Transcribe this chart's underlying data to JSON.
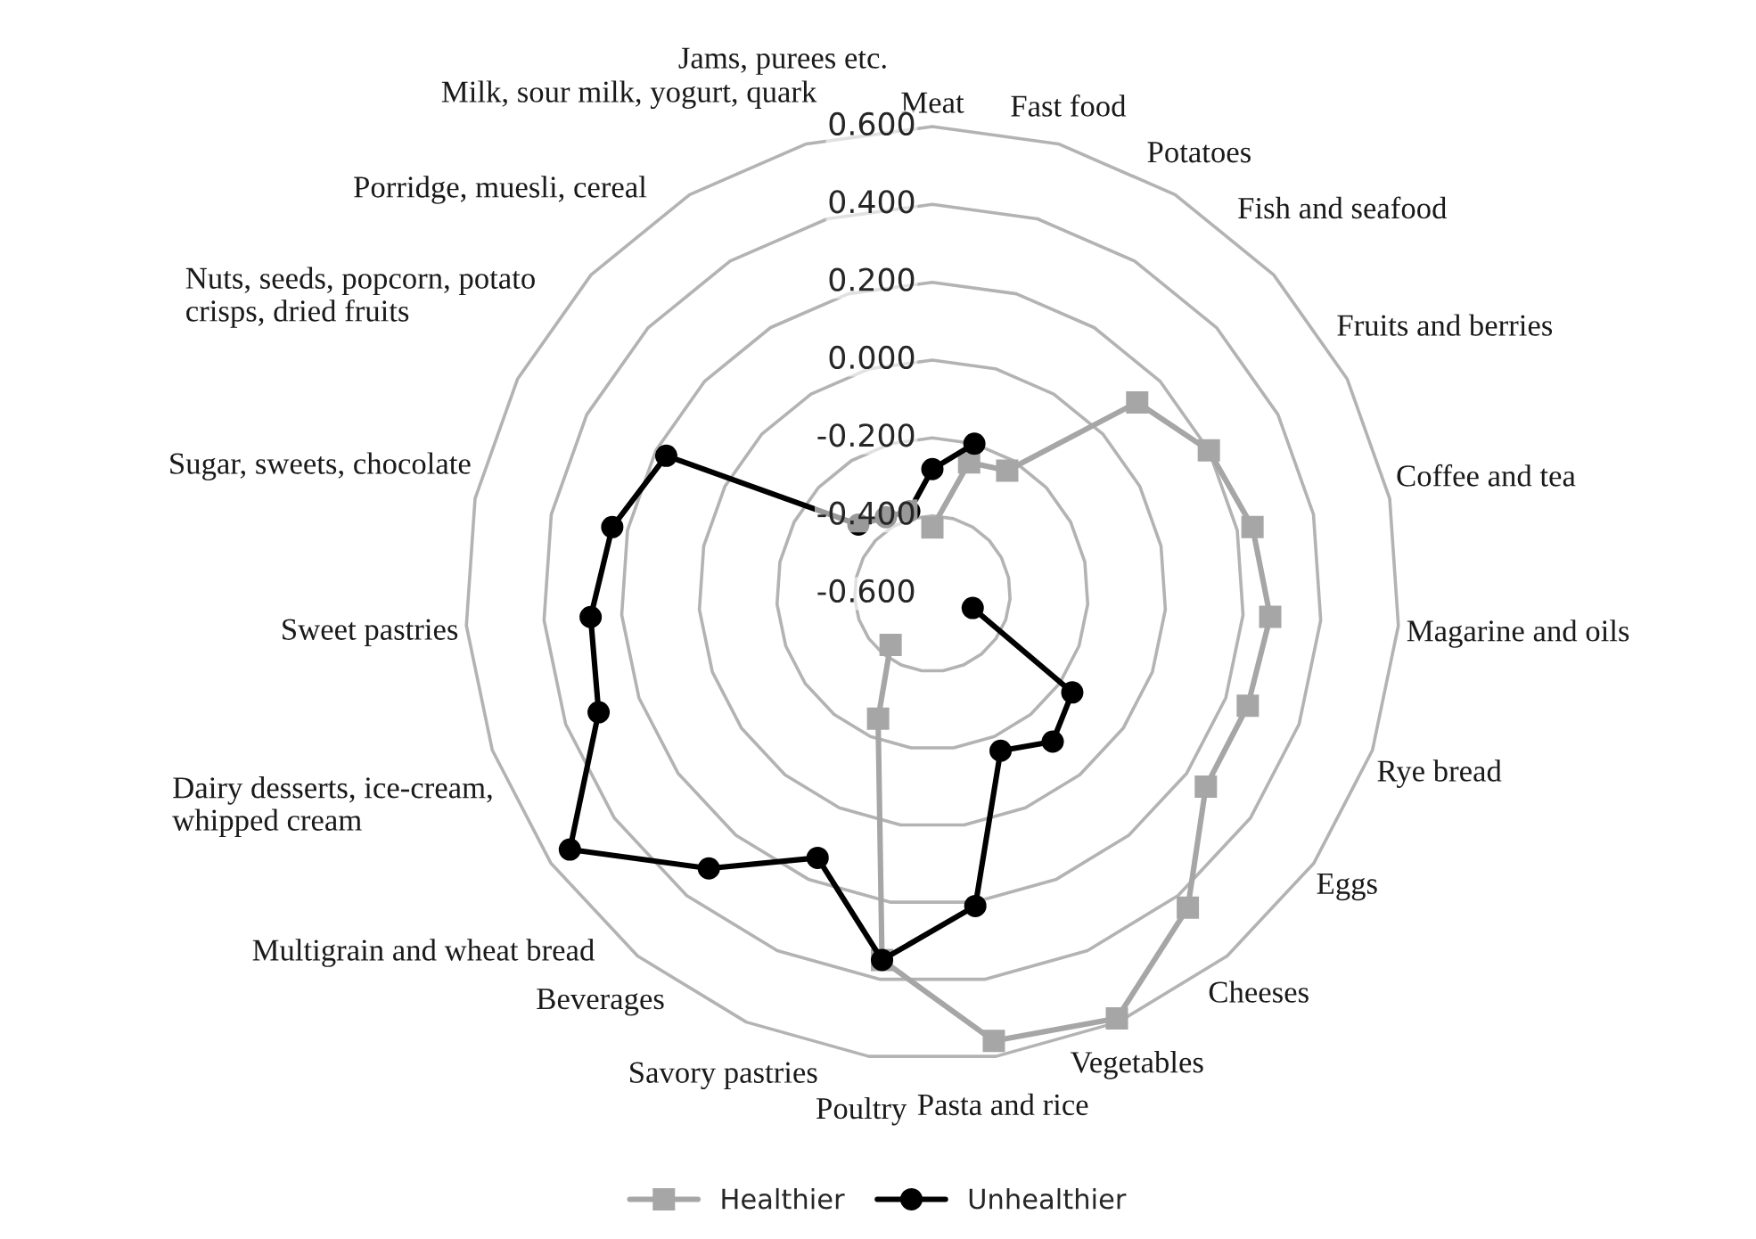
{
  "chart_data": {
    "type": "radar",
    "categories": [
      "Meat",
      "Fast food",
      "Potatoes",
      "Fish and seafood",
      "Fruits and berries",
      "Coffee and tea",
      "Magarine and oils",
      "Rye bread",
      "Eggs",
      "Cheeses",
      "Vegetables",
      "Pasta and rice",
      "Poultry",
      "Savory pastries",
      "Beverages",
      "Multigrain and wheat bread",
      "Dairy desserts, ice-cream,\nwhipped cream",
      "Sweet pastries",
      "Sugar, sweets, chocolate",
      "Nuts, seeds, popcorn, potato\ncrisps, dried fruits",
      "Porridge, muesli, cereal",
      "Milk, sour milk, yogurt, quark",
      "Jams, purees etc."
    ],
    "series": [
      {
        "name": "Healthier",
        "color": "#a6a6a6",
        "marker": "square",
        "values": [
          -0.43,
          -0.25,
          -0.23,
          0.12,
          0.2,
          0.24,
          0.27,
          0.26,
          0.26,
          0.44,
          0.59,
          0.56,
          0.35,
          -0.25,
          -0.43,
          null,
          null,
          null,
          null,
          null,
          null,
          null,
          null
        ]
      },
      {
        "name": "Unhealthier",
        "color": "#000000",
        "marker": "circle",
        "values": [
          -0.28,
          -0.2,
          null,
          null,
          null,
          null,
          null,
          -0.49,
          -0.16,
          -0.11,
          -0.16,
          0.21,
          0.35,
          0.14,
          0.31,
          0.54,
          0.31,
          0.28,
          0.24,
          0.17,
          -0.34,
          -0.37,
          -0.38
        ]
      }
    ],
    "ylim": [
      -0.6,
      0.6
    ],
    "yticks": [
      {
        "value": -0.6,
        "label": "-0.600"
      },
      {
        "value": -0.4,
        "label": "-0.400"
      },
      {
        "value": -0.2,
        "label": "-0.200"
      },
      {
        "value": 0.0,
        "label": "0.000"
      },
      {
        "value": 0.2,
        "label": "0.200"
      },
      {
        "value": 0.4,
        "label": "0.400"
      },
      {
        "value": 0.6,
        "label": "0.600"
      }
    ],
    "grid": true,
    "legend": "bottom",
    "line_style": "solid"
  }
}
